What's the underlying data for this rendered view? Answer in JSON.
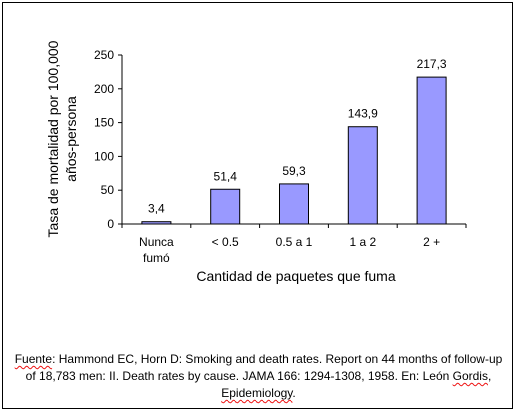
{
  "chart_data": {
    "type": "bar",
    "categories": [
      "Nunca fumó",
      "< 0.5",
      "0.5 a 1",
      "1 a 2",
      "2 +"
    ],
    "category_lines": [
      [
        "Nunca",
        "fumó"
      ],
      [
        "< 0.5"
      ],
      [
        "0.5 a 1"
      ],
      [
        "1 a 2"
      ],
      [
        "2 +"
      ]
    ],
    "values": [
      3.4,
      51.4,
      59.3,
      143.9,
      217.3
    ],
    "data_labels": [
      "3,4",
      "51,4",
      "59,3",
      "143,9",
      "217,3"
    ],
    "title": "",
    "xlabel": "Cantidad de paquetes que fuma",
    "ylabel": "Tasa de mortalidad por 100,000 años-persona",
    "ylabel_lines": [
      "Tasa de mortalidad por 100,000",
      "años-persona"
    ],
    "ylim": [
      0,
      250
    ],
    "yticks": [
      0,
      50,
      100,
      150,
      200,
      250
    ],
    "grid": false,
    "legend": "none",
    "colors": {
      "bar_fill": "#9999ff",
      "bar_stroke": "#000000"
    }
  },
  "source": {
    "prefix": "Fuente",
    "line1_rest": ": Hammond EC, Horn D: Smoking and death rates. Report on 44 months of follow-up",
    "line2": "of 18,783 men: II.  Death rates by cause. JAMA 166: 1294-1308, 1958. En: León ",
    "line2_sq": "Gordis",
    "line2_end": ",",
    "line3_sq": "Epidemiology",
    "line3_end": "."
  }
}
